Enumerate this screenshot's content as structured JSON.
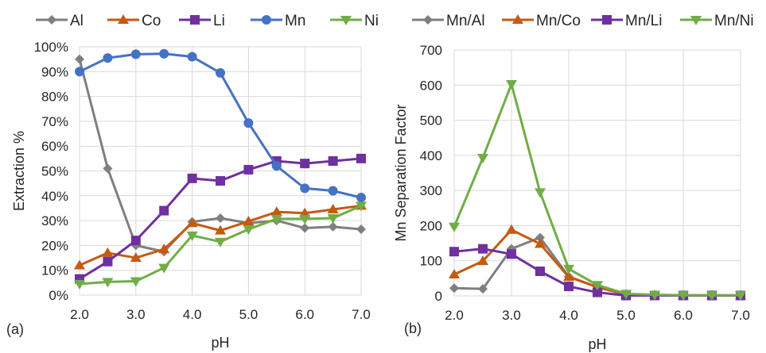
{
  "chart_data": [
    {
      "id": "a",
      "type": "line",
      "panel_label": "(a)",
      "title": "",
      "xlabel": "pH",
      "ylabel": "Extraction %",
      "x": [
        2.0,
        2.5,
        3.0,
        3.5,
        4.0,
        4.5,
        5.0,
        5.5,
        6.0,
        6.5,
        7.0
      ],
      "xlim": [
        2.0,
        7.0
      ],
      "x_ticks": [
        "2.0",
        "3.0",
        "4.0",
        "5.0",
        "6.0",
        "7.0"
      ],
      "x_tick_values": [
        2,
        3,
        4,
        5,
        6,
        7
      ],
      "ylim": [
        0,
        100
      ],
      "y_ticks": [
        "0%",
        "10%",
        "20%",
        "30%",
        "40%",
        "50%",
        "60%",
        "70%",
        "80%",
        "90%",
        "100%"
      ],
      "y_tick_values": [
        0,
        10,
        20,
        30,
        40,
        50,
        60,
        70,
        80,
        90,
        100
      ],
      "grid": true,
      "legend_position": "top",
      "series": [
        {
          "name": "Al",
          "color": "#7f7f7f",
          "marker": "diamond",
          "values": [
            95,
            51,
            20,
            17.5,
            29.5,
            31,
            29,
            30,
            27,
            27.5,
            26.5
          ]
        },
        {
          "name": "Co",
          "color": "#c55a11",
          "marker": "triangle-up",
          "values": [
            12,
            17,
            15,
            18.5,
            29,
            26,
            29.7,
            33.5,
            33,
            34.5,
            36
          ]
        },
        {
          "name": "Li",
          "color": "#7030a0",
          "marker": "square",
          "values": [
            6.5,
            13.5,
            22,
            34,
            47,
            46,
            50.5,
            54,
            53,
            54,
            55
          ]
        },
        {
          "name": "Mn",
          "color": "#4472c4",
          "marker": "circle",
          "values": [
            90,
            95.5,
            97,
            97.2,
            96,
            89.5,
            69.3,
            52,
            43,
            42,
            39.3
          ]
        },
        {
          "name": "Ni",
          "color": "#70ad47",
          "marker": "triangle-down",
          "values": [
            4.5,
            5.3,
            5.6,
            11,
            24,
            21.5,
            26.5,
            30.7,
            30.7,
            31,
            36
          ]
        }
      ]
    },
    {
      "id": "b",
      "type": "line",
      "panel_label": "(b)",
      "title": "",
      "xlabel": "pH",
      "ylabel": "Mn Separation Factor",
      "x": [
        2.0,
        2.5,
        3.0,
        3.5,
        4.0,
        4.5,
        5.0,
        5.5,
        6.0,
        6.5,
        7.0
      ],
      "xlim": [
        2.0,
        7.0
      ],
      "x_ticks": [
        "2.0",
        "3.0",
        "4.0",
        "5.0",
        "6.0",
        "7.0"
      ],
      "x_tick_values": [
        2,
        3,
        4,
        5,
        6,
        7
      ],
      "ylim": [
        0,
        700
      ],
      "y_ticks": [
        "0",
        "100",
        "200",
        "300",
        "400",
        "500",
        "600",
        "700"
      ],
      "y_tick_values": [
        0,
        100,
        200,
        300,
        400,
        500,
        600,
        700
      ],
      "grid": true,
      "legend_position": "top",
      "series": [
        {
          "name": "Mn/Al",
          "color": "#7f7f7f",
          "marker": "diamond",
          "values": [
            22,
            20,
            134,
            166,
            55,
            25,
            4,
            2,
            2,
            1,
            1
          ]
        },
        {
          "name": "Mn/Co",
          "color": "#c55a11",
          "marker": "triangle-up",
          "values": [
            61,
            99,
            188,
            148,
            54,
            25,
            4,
            2,
            1,
            1,
            1
          ]
        },
        {
          "name": "Mn/Li",
          "color": "#7030a0",
          "marker": "square",
          "values": [
            126,
            134,
            119,
            70,
            27,
            10,
            1,
            1,
            1,
            1,
            1
          ]
        },
        {
          "name": "Mn/Ni",
          "color": "#70ad47",
          "marker": "triangle-down",
          "values": [
            197,
            393,
            603,
            295,
            77,
            31,
            6,
            3,
            2,
            2,
            2
          ]
        }
      ]
    }
  ]
}
